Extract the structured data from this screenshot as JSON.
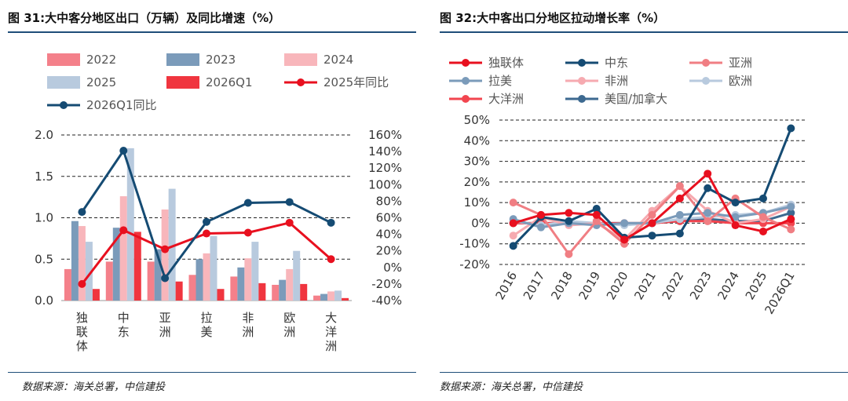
{
  "left": {
    "title": "图 31:大中客分地区出口（万辆）及同比增速（%）",
    "source": "数据来源：海关总署，中信建投",
    "chart_data": {
      "type": "bar",
      "categories": [
        "独联体",
        "中东",
        "亚洲",
        "拉美",
        "非洲",
        "欧洲",
        "大洋洲"
      ],
      "bar_series": [
        {
          "name": "2022",
          "color": "#f4808a",
          "values": [
            0.38,
            0.47,
            0.47,
            0.31,
            0.29,
            0.19,
            0.06
          ]
        },
        {
          "name": "2023",
          "color": "#7b9bba",
          "values": [
            0.96,
            0.88,
            0.62,
            0.5,
            0.4,
            0.25,
            0.08
          ]
        },
        {
          "name": "2024",
          "color": "#f8b6bb",
          "values": [
            0.9,
            1.26,
            1.1,
            0.57,
            0.51,
            0.38,
            0.11
          ]
        },
        {
          "name": "2025",
          "color": "#b8cade",
          "values": [
            0.71,
            1.84,
            1.35,
            0.78,
            0.71,
            0.6,
            0.12
          ]
        },
        {
          "name": "2026Q1",
          "color": "#f0353f",
          "values": [
            0.14,
            0.83,
            0.23,
            0.14,
            0.21,
            0.2,
            0.03
          ]
        }
      ],
      "line_series": [
        {
          "name": "2025年同比",
          "color": "#e8101f",
          "values": [
            -20,
            45,
            22,
            41,
            42,
            54,
            10
          ]
        },
        {
          "name": "2026Q1同比",
          "color": "#154b73",
          "values": [
            67,
            141,
            -13,
            55,
            78,
            79,
            54
          ]
        }
      ],
      "ylim_left": [
        0,
        2.0
      ],
      "yticks_left": [
        "0.0",
        "0.5",
        "1.0",
        "1.5",
        "2.0"
      ],
      "ylim_right": [
        -40,
        160
      ],
      "yticks_right": [
        "-40%",
        "-20%",
        "0%",
        "20%",
        "40%",
        "60%",
        "80%",
        "100%",
        "120%",
        "140%",
        "160%"
      ],
      "grid": "dashed horizontal",
      "legend_position": "top"
    }
  },
  "right": {
    "title": "图 32:大中客出口分地区拉动增长率（%）",
    "source": "数据来源：海关总署，中信建投",
    "chart_data": {
      "type": "line",
      "x": [
        "2016",
        "2017",
        "2018",
        "2019",
        "2020",
        "2021",
        "2022",
        "2023",
        "2024",
        "2025",
        "2026Q1"
      ],
      "series": [
        {
          "name": "独联体",
          "color": "#e8101f",
          "values": [
            0,
            4,
            5,
            4,
            -8,
            0,
            12,
            24,
            -1,
            -4,
            2
          ]
        },
        {
          "name": "中东",
          "color": "#154b73",
          "values": [
            -11,
            3,
            1,
            7,
            -7,
            -6,
            -5,
            17,
            10,
            12,
            46
          ]
        },
        {
          "name": "亚洲",
          "color": "#f07e83",
          "values": [
            10,
            4,
            -15,
            1,
            -10,
            4,
            18,
            1,
            12,
            3,
            -3
          ]
        },
        {
          "name": "拉美",
          "color": "#7b9bba",
          "values": [
            2,
            -2,
            0,
            -1,
            0,
            0,
            4,
            5,
            3,
            5,
            8
          ]
        },
        {
          "name": "非洲",
          "color": "#f6aab0",
          "values": [
            -6,
            3,
            -1,
            0,
            -8,
            6,
            18,
            6,
            0,
            2,
            8
          ]
        },
        {
          "name": "欧洲",
          "color": "#b8cade",
          "values": [
            1,
            -1,
            1,
            0,
            -1,
            0,
            2,
            3,
            4,
            5,
            9
          ]
        },
        {
          "name": "大洋洲",
          "color": "#f2454f",
          "values": [
            0,
            0,
            0,
            0,
            0,
            0,
            1,
            1,
            0,
            0,
            0
          ]
        },
        {
          "name": "美国/加拿大",
          "color": "#3d6990",
          "values": [
            0,
            0,
            0,
            0,
            0,
            0,
            1,
            2,
            1,
            1,
            5
          ]
        }
      ],
      "ylim": [
        -20,
        50
      ],
      "yticks": [
        "-20%",
        "-10%",
        "0%",
        "10%",
        "20%",
        "30%",
        "40%",
        "50%"
      ],
      "grid": "dashed horizontal",
      "legend_position": "top"
    }
  }
}
